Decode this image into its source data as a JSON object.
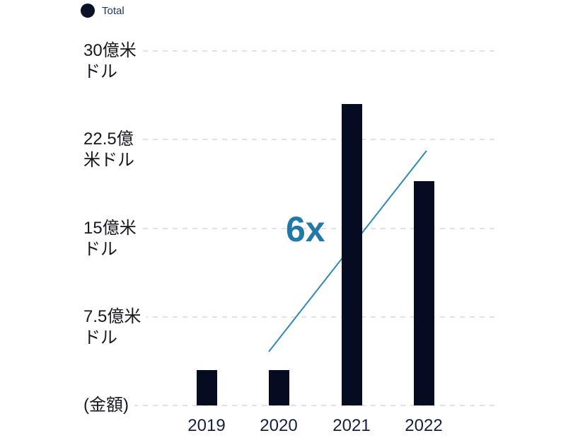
{
  "legend": {
    "label": "Total",
    "marker_color": "#0d1126"
  },
  "annotation": {
    "text": "6x",
    "color": "#2279a9"
  },
  "colors": {
    "bar": "#050b21",
    "gridline": "#dde2f0",
    "trend_line": "#2d8ab8",
    "ytick_text": "#17171f",
    "xtick_text": "#15203a",
    "legend_text": "#1d3766",
    "background": "#ffffff"
  },
  "chart_data": {
    "type": "bar",
    "title": "",
    "categories": [
      "2019",
      "2020",
      "2021",
      "2022"
    ],
    "series": [
      {
        "name": "Total",
        "values": [
          3,
          3,
          25.5,
          19
        ]
      }
    ],
    "unit": "億米ドル",
    "xlabel": "",
    "ylabel": "(金額)",
    "ylim": [
      0,
      30
    ],
    "ytick_values": [
      30,
      22.5,
      15,
      7.5,
      0
    ],
    "yticks": [
      {
        "value": 30,
        "lines": [
          "30億米",
          "ドル"
        ]
      },
      {
        "value": 22.5,
        "lines": [
          "22.5億",
          "米ドル"
        ]
      },
      {
        "value": 15,
        "lines": [
          "15億米",
          "ドル"
        ]
      },
      {
        "value": 7.5,
        "lines": [
          "7.5億米",
          "ドル"
        ]
      },
      {
        "value": 0,
        "lines": [
          "(金額)"
        ]
      }
    ],
    "grid": "horizontal dashed",
    "legend_position": "top-left",
    "legend_entries": [
      "Total"
    ],
    "annotations": [
      {
        "text": "6x",
        "color": "#2279a9",
        "type": "growth-multiple-with-trend-line"
      }
    ]
  }
}
